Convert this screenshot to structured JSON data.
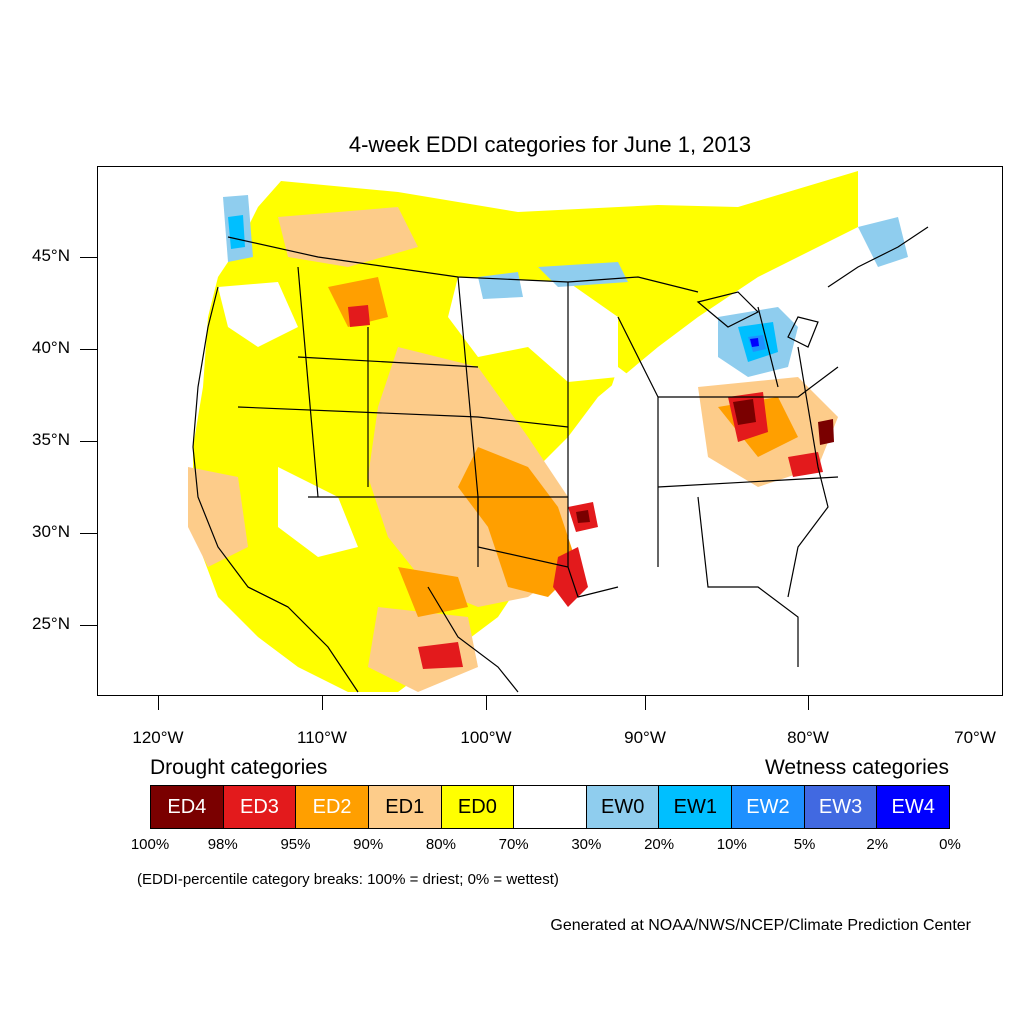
{
  "title": "4-week EDDI categories for June 1, 2013",
  "axes": {
    "latitude_labels": [
      "45°N",
      "40°N",
      "35°N",
      "30°N",
      "25°N"
    ],
    "longitude_labels": [
      "120°W",
      "110°W",
      "100°W",
      "90°W",
      "80°W",
      "70°W"
    ]
  },
  "legend": {
    "drought_heading": "Drought categories",
    "wetness_heading": "Wetness categories",
    "categories": [
      {
        "label": "ED4",
        "color": "#7a0000",
        "text_color": "#ffffff"
      },
      {
        "label": "ED3",
        "color": "#e31a1c",
        "text_color": "#ffffff"
      },
      {
        "label": "ED2",
        "color": "#ff9f00",
        "text_color": "#ffffff"
      },
      {
        "label": "ED1",
        "color": "#fdcc8a",
        "text_color": "#000000"
      },
      {
        "label": "ED0",
        "color": "#ffff00",
        "text_color": "#000000"
      },
      {
        "label": "",
        "color": "#ffffff",
        "text_color": "#000000"
      },
      {
        "label": "EW0",
        "color": "#8fcdee",
        "text_color": "#000000"
      },
      {
        "label": "EW1",
        "color": "#00bfff",
        "text_color": "#000000"
      },
      {
        "label": "EW2",
        "color": "#1e90ff",
        "text_color": "#ffffff"
      },
      {
        "label": "EW3",
        "color": "#4169e1",
        "text_color": "#ffffff"
      },
      {
        "label": "EW4",
        "color": "#0000ff",
        "text_color": "#ffffff"
      }
    ],
    "percentile_breaks": [
      "100%",
      "98%",
      "95%",
      "90%",
      "80%",
      "70%",
      "30%",
      "20%",
      "10%",
      "5%",
      "2%",
      "0%"
    ]
  },
  "note": "(EDDI-percentile category breaks: 100% = driest; 0% = wettest)",
  "credit": "Generated at NOAA/NWS/NCEP/Climate Prediction Center"
}
